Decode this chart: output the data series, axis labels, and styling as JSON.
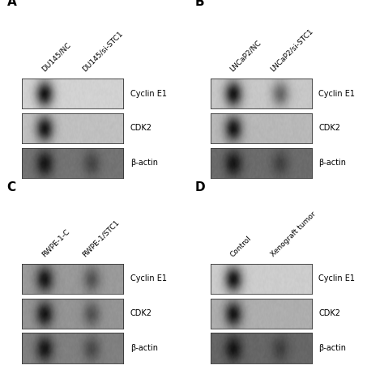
{
  "panels": [
    {
      "label": "A",
      "col_labels": [
        "DU145/NC",
        "DU145/si-STC1"
      ],
      "bands": [
        {
          "protein": "Cyclin E1",
          "left_dark": true,
          "right_dark": false,
          "bg": 0.82
        },
        {
          "protein": "CDK2",
          "left_dark": true,
          "right_dark": false,
          "bg": 0.75
        },
        {
          "protein": "β-actin",
          "left_dark": true,
          "right_dark": true,
          "bg": 0.45
        }
      ]
    },
    {
      "label": "B",
      "col_labels": [
        "LNCaP2/NC",
        "LNCaP2/si-STC1"
      ],
      "bands": [
        {
          "protein": "Cyclin E1",
          "left_dark": true,
          "right_dark": true,
          "bg": 0.78
        },
        {
          "protein": "CDK2",
          "left_dark": true,
          "right_dark": false,
          "bg": 0.72
        },
        {
          "protein": "β-actin",
          "left_dark": true,
          "right_dark": true,
          "bg": 0.42
        }
      ]
    },
    {
      "label": "C",
      "col_labels": [
        "RWPE-1-C",
        "RWPE-1/STC1"
      ],
      "bands": [
        {
          "protein": "Cyclin E1",
          "left_dark": true,
          "right_dark": true,
          "bg": 0.6
        },
        {
          "protein": "CDK2",
          "left_dark": true,
          "right_dark": true,
          "bg": 0.58
        },
        {
          "protein": "β-actin",
          "left_dark": true,
          "right_dark": true,
          "bg": 0.5
        }
      ]
    },
    {
      "label": "D",
      "col_labels": [
        "Control",
        "Xenograft tumor"
      ],
      "bands": [
        {
          "protein": "Cyclin E1",
          "left_dark": true,
          "right_dark": false,
          "bg": 0.8
        },
        {
          "protein": "CDK2",
          "left_dark": true,
          "right_dark": false,
          "bg": 0.68
        },
        {
          "protein": "β-actin",
          "left_dark": true,
          "right_dark": true,
          "bg": 0.4
        }
      ]
    }
  ],
  "bg_color": "#ffffff",
  "label_fontsize": 11,
  "protein_fontsize": 7,
  "col_label_fontsize": 6.5
}
